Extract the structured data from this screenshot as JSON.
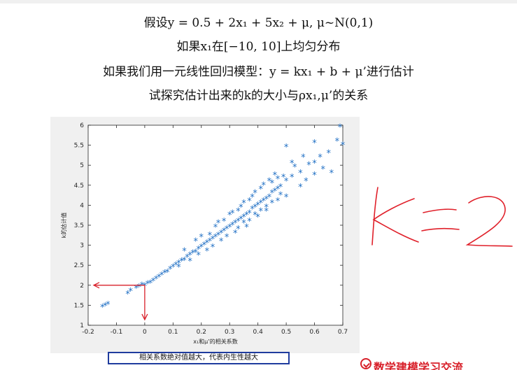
{
  "text_lines": [
    "假设y = 0.5 + 2x₁ + 5x₂ + μ, μ~N(0,1)",
    "如果x₁在[−10, 10]上均匀分布",
    "如果我们用一元线性回归模型：y = kx₁ + b + μ’进行估计",
    "试探究估计出来的k的大小与ρx₁,μ’的关系"
  ],
  "caption": "相关系数绝对值越大，代表内生性越大",
  "logo_text": "数学建模学习交流",
  "annotations": {
    "handwriting": "K=2",
    "handwriting_color": "#e0202a",
    "arrow_color": "#d8202a",
    "arrow_target": {
      "x": 0,
      "y": 2
    }
  },
  "chart_data": {
    "type": "scatter",
    "title": "",
    "xlabel": "x₁和μ’的相关系数",
    "ylabel": "k的估计值",
    "xlim": [
      -0.2,
      0.7
    ],
    "ylim": [
      1,
      6
    ],
    "xticks": [
      "-0.2",
      "-0.1",
      "0",
      "0.1",
      "0.2",
      "0.3",
      "0.4",
      "0.5",
      "0.6",
      "0.7"
    ],
    "yticks": [
      "1",
      "1.5",
      "2",
      "2.5",
      "3",
      "3.5",
      "4",
      "4.5",
      "5",
      "5.5",
      "6"
    ],
    "marker": "*",
    "color": "#1f6fc4",
    "grid": false,
    "background": "#f0f0f0",
    "series": [
      {
        "points": [
          [
            -0.15,
            1.45
          ],
          [
            -0.14,
            1.48
          ],
          [
            -0.13,
            1.52
          ],
          [
            -0.06,
            1.78
          ],
          [
            -0.05,
            1.85
          ],
          [
            -0.03,
            1.92
          ],
          [
            -0.02,
            1.95
          ],
          [
            -0.01,
            2.0
          ],
          [
            0.0,
            1.98
          ],
          [
            0.01,
            2.03
          ],
          [
            0.02,
            2.05
          ],
          [
            0.03,
            2.1
          ],
          [
            0.04,
            2.15
          ],
          [
            0.05,
            2.2
          ],
          [
            0.06,
            2.25
          ],
          [
            0.07,
            2.3
          ],
          [
            0.08,
            2.32
          ],
          [
            0.09,
            2.4
          ],
          [
            0.1,
            2.45
          ],
          [
            0.11,
            2.5
          ],
          [
            0.12,
            2.55
          ],
          [
            0.13,
            2.6
          ],
          [
            0.14,
            2.62
          ],
          [
            0.15,
            2.7
          ],
          [
            0.16,
            2.75
          ],
          [
            0.17,
            2.8
          ],
          [
            0.18,
            2.82
          ],
          [
            0.19,
            2.9
          ],
          [
            0.2,
            2.95
          ],
          [
            0.21,
            3.0
          ],
          [
            0.22,
            3.05
          ],
          [
            0.23,
            3.1
          ],
          [
            0.24,
            3.15
          ],
          [
            0.25,
            3.2
          ],
          [
            0.26,
            3.25
          ],
          [
            0.27,
            3.3
          ],
          [
            0.28,
            3.35
          ],
          [
            0.29,
            3.4
          ],
          [
            0.3,
            3.45
          ],
          [
            0.31,
            3.5
          ],
          [
            0.32,
            3.55
          ],
          [
            0.33,
            3.6
          ],
          [
            0.34,
            3.65
          ],
          [
            0.35,
            3.7
          ],
          [
            0.36,
            3.75
          ],
          [
            0.37,
            3.8
          ],
          [
            0.38,
            3.9
          ],
          [
            0.39,
            3.95
          ],
          [
            0.4,
            4.0
          ],
          [
            0.41,
            4.05
          ],
          [
            0.42,
            4.1
          ],
          [
            0.43,
            4.15
          ],
          [
            0.44,
            4.2
          ],
          [
            0.45,
            4.3
          ],
          [
            0.46,
            4.35
          ],
          [
            0.47,
            4.4
          ],
          [
            0.48,
            4.45
          ],
          [
            0.5,
            4.6
          ],
          [
            0.52,
            4.7
          ],
          [
            0.55,
            4.8
          ],
          [
            0.58,
            5.0
          ],
          [
            0.6,
            5.05
          ],
          [
            0.62,
            5.2
          ],
          [
            0.65,
            5.3
          ],
          [
            0.68,
            5.6
          ],
          [
            0.69,
            5.95
          ],
          [
            0.7,
            5.5
          ],
          [
            0.14,
            2.85
          ],
          [
            0.18,
            3.1
          ],
          [
            0.22,
            2.85
          ],
          [
            0.25,
            3.45
          ],
          [
            0.27,
            3.1
          ],
          [
            0.3,
            3.75
          ],
          [
            0.32,
            3.3
          ],
          [
            0.34,
            3.95
          ],
          [
            0.36,
            3.45
          ],
          [
            0.38,
            4.2
          ],
          [
            0.4,
            3.7
          ],
          [
            0.41,
            4.4
          ],
          [
            0.43,
            3.85
          ],
          [
            0.45,
            4.55
          ],
          [
            0.47,
            4.1
          ],
          [
            0.49,
            4.7
          ],
          [
            0.5,
            4.2
          ],
          [
            0.53,
            4.95
          ],
          [
            0.55,
            4.45
          ],
          [
            0.57,
            4.6
          ],
          [
            0.6,
            4.75
          ],
          [
            0.63,
            4.9
          ],
          [
            0.66,
            4.8
          ],
          [
            0.2,
            3.2
          ],
          [
            0.23,
            3.25
          ],
          [
            0.26,
            3.55
          ],
          [
            0.28,
            3.6
          ],
          [
            0.31,
            3.8
          ],
          [
            0.33,
            3.85
          ],
          [
            0.35,
            4.05
          ],
          [
            0.37,
            4.1
          ],
          [
            0.39,
            4.3
          ],
          [
            0.42,
            4.5
          ],
          [
            0.44,
            4.6
          ],
          [
            0.46,
            4.75
          ],
          [
            0.5,
            5.45
          ],
          [
            0.52,
            5.05
          ],
          [
            0.56,
            5.2
          ],
          [
            0.6,
            5.55
          ],
          [
            0.12,
            2.45
          ],
          [
            0.16,
            2.6
          ],
          [
            0.19,
            2.75
          ],
          [
            0.24,
            2.95
          ],
          [
            0.29,
            3.2
          ],
          [
            0.33,
            3.4
          ],
          [
            0.37,
            3.6
          ],
          [
            0.41,
            3.85
          ],
          [
            0.45,
            4.05
          ],
          [
            0.48,
            4.25
          ],
          [
            0.35,
            3.55
          ],
          [
            0.39,
            3.75
          ],
          [
            0.43,
            3.95
          ],
          [
            0.47,
            4.65
          ]
        ]
      }
    ]
  }
}
